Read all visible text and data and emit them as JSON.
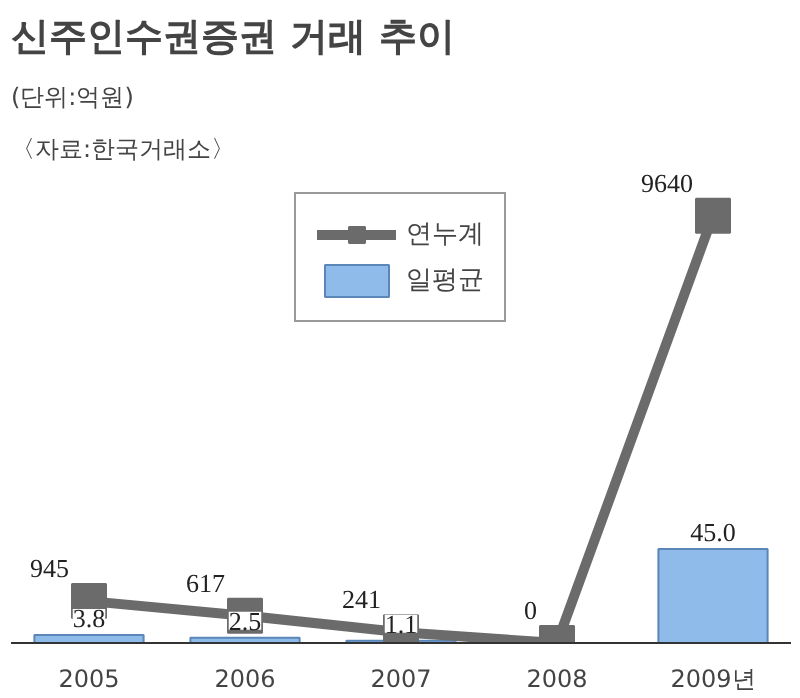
{
  "chart_data": {
    "type": "bar",
    "title": "신주인수권증권 거래 추이",
    "subtitle": "(단위:억원)",
    "annotations": [
      "〈자료:한국거래소〉"
    ],
    "categories": [
      "2005",
      "2006",
      "2007",
      "2008",
      "2009년"
    ],
    "series": [
      {
        "name": "연누계",
        "type": "line",
        "color": "#6b6b6b",
        "values": [
          945,
          617,
          241,
          0,
          9640
        ],
        "marker": "square"
      },
      {
        "name": "일평균",
        "axis": "y2",
        "color": "#8fbbeb",
        "values": [
          3.8,
          2.5,
          1.1,
          null,
          45.0
        ],
        "value_labels": [
          "3.8",
          "2.5",
          "1.1",
          null,
          "45.0"
        ]
      }
    ],
    "data_labels": true,
    "legend": "top",
    "grid": false
  }
}
